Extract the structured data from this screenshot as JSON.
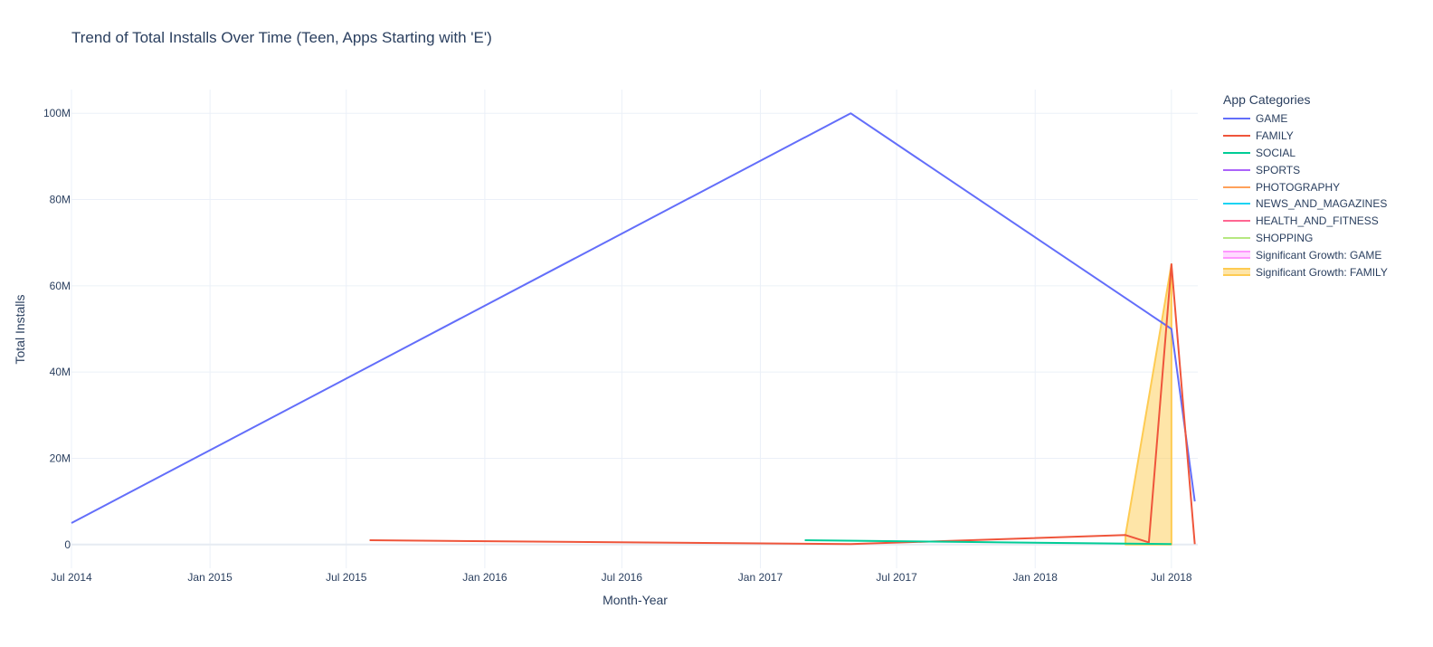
{
  "chart_data": {
    "type": "line",
    "title": "Trend of Total Installs Over Time (Teen, Apps Starting with 'E')",
    "xlabel": "Month-Year",
    "ylabel": "Total Installs",
    "xlim": [
      "2014-07-01",
      "2018-08-05"
    ],
    "ylim": [
      -5500000,
      105500000
    ],
    "x_ticks": [
      "Jul 2014",
      "Jan 2015",
      "Jul 2015",
      "Jan 2016",
      "Jul 2016",
      "Jan 2017",
      "Jul 2017",
      "Jan 2018",
      "Jul 2018"
    ],
    "x_tick_dates": [
      "2014-07-01",
      "2015-01-01",
      "2015-07-01",
      "2016-01-01",
      "2016-07-01",
      "2017-01-01",
      "2017-07-01",
      "2018-01-01",
      "2018-07-01"
    ],
    "y_ticks": [
      0,
      20000000,
      40000000,
      60000000,
      80000000,
      100000000
    ],
    "y_tick_labels": [
      "0",
      "20M",
      "40M",
      "60M",
      "80M",
      "100M"
    ],
    "grid": true,
    "legend_title": "App Categories",
    "legend_position": "right",
    "series": [
      {
        "name": "GAME",
        "color": "#636efa",
        "x": [
          "2014-07-01",
          "2017-05-01",
          "2018-07-01",
          "2018-08-01"
        ],
        "y": [
          5000000,
          100000000,
          50000000,
          10000000
        ]
      },
      {
        "name": "FAMILY",
        "color": "#ef553b",
        "x": [
          "2015-08-01",
          "2017-05-01",
          "2018-05-01",
          "2018-06-01",
          "2018-07-01",
          "2018-08-01"
        ],
        "y": [
          1000000,
          100000,
          2200000,
          500000,
          65000000,
          100000
        ]
      },
      {
        "name": "SOCIAL",
        "color": "#00cc96",
        "x": [
          "2017-03-01",
          "2018-07-01"
        ],
        "y": [
          1000000,
          100000
        ]
      },
      {
        "name": "SPORTS",
        "color": "#ab63fa",
        "x": [],
        "y": []
      },
      {
        "name": "PHOTOGRAPHY",
        "color": "#ffa15a",
        "x": [],
        "y": []
      },
      {
        "name": "NEWS_AND_MAGAZINES",
        "color": "#19d3f3",
        "x": [],
        "y": []
      },
      {
        "name": "HEALTH_AND_FITNESS",
        "color": "#ff6692",
        "x": [],
        "y": []
      },
      {
        "name": "SHOPPING",
        "color": "#b6e880",
        "x": [],
        "y": []
      }
    ],
    "highlights": [
      {
        "name": "Significant Growth: GAME",
        "color": "#ff97ff",
        "fill": "rgba(255,151,255,0.35)",
        "x": [],
        "y": []
      },
      {
        "name": "Significant Growth: FAMILY",
        "color": "#fecb52",
        "fill": "rgba(254,203,82,0.5)",
        "x": [
          "2018-05-01",
          "2018-07-01"
        ],
        "y": [
          2200000,
          65000000
        ]
      }
    ]
  }
}
